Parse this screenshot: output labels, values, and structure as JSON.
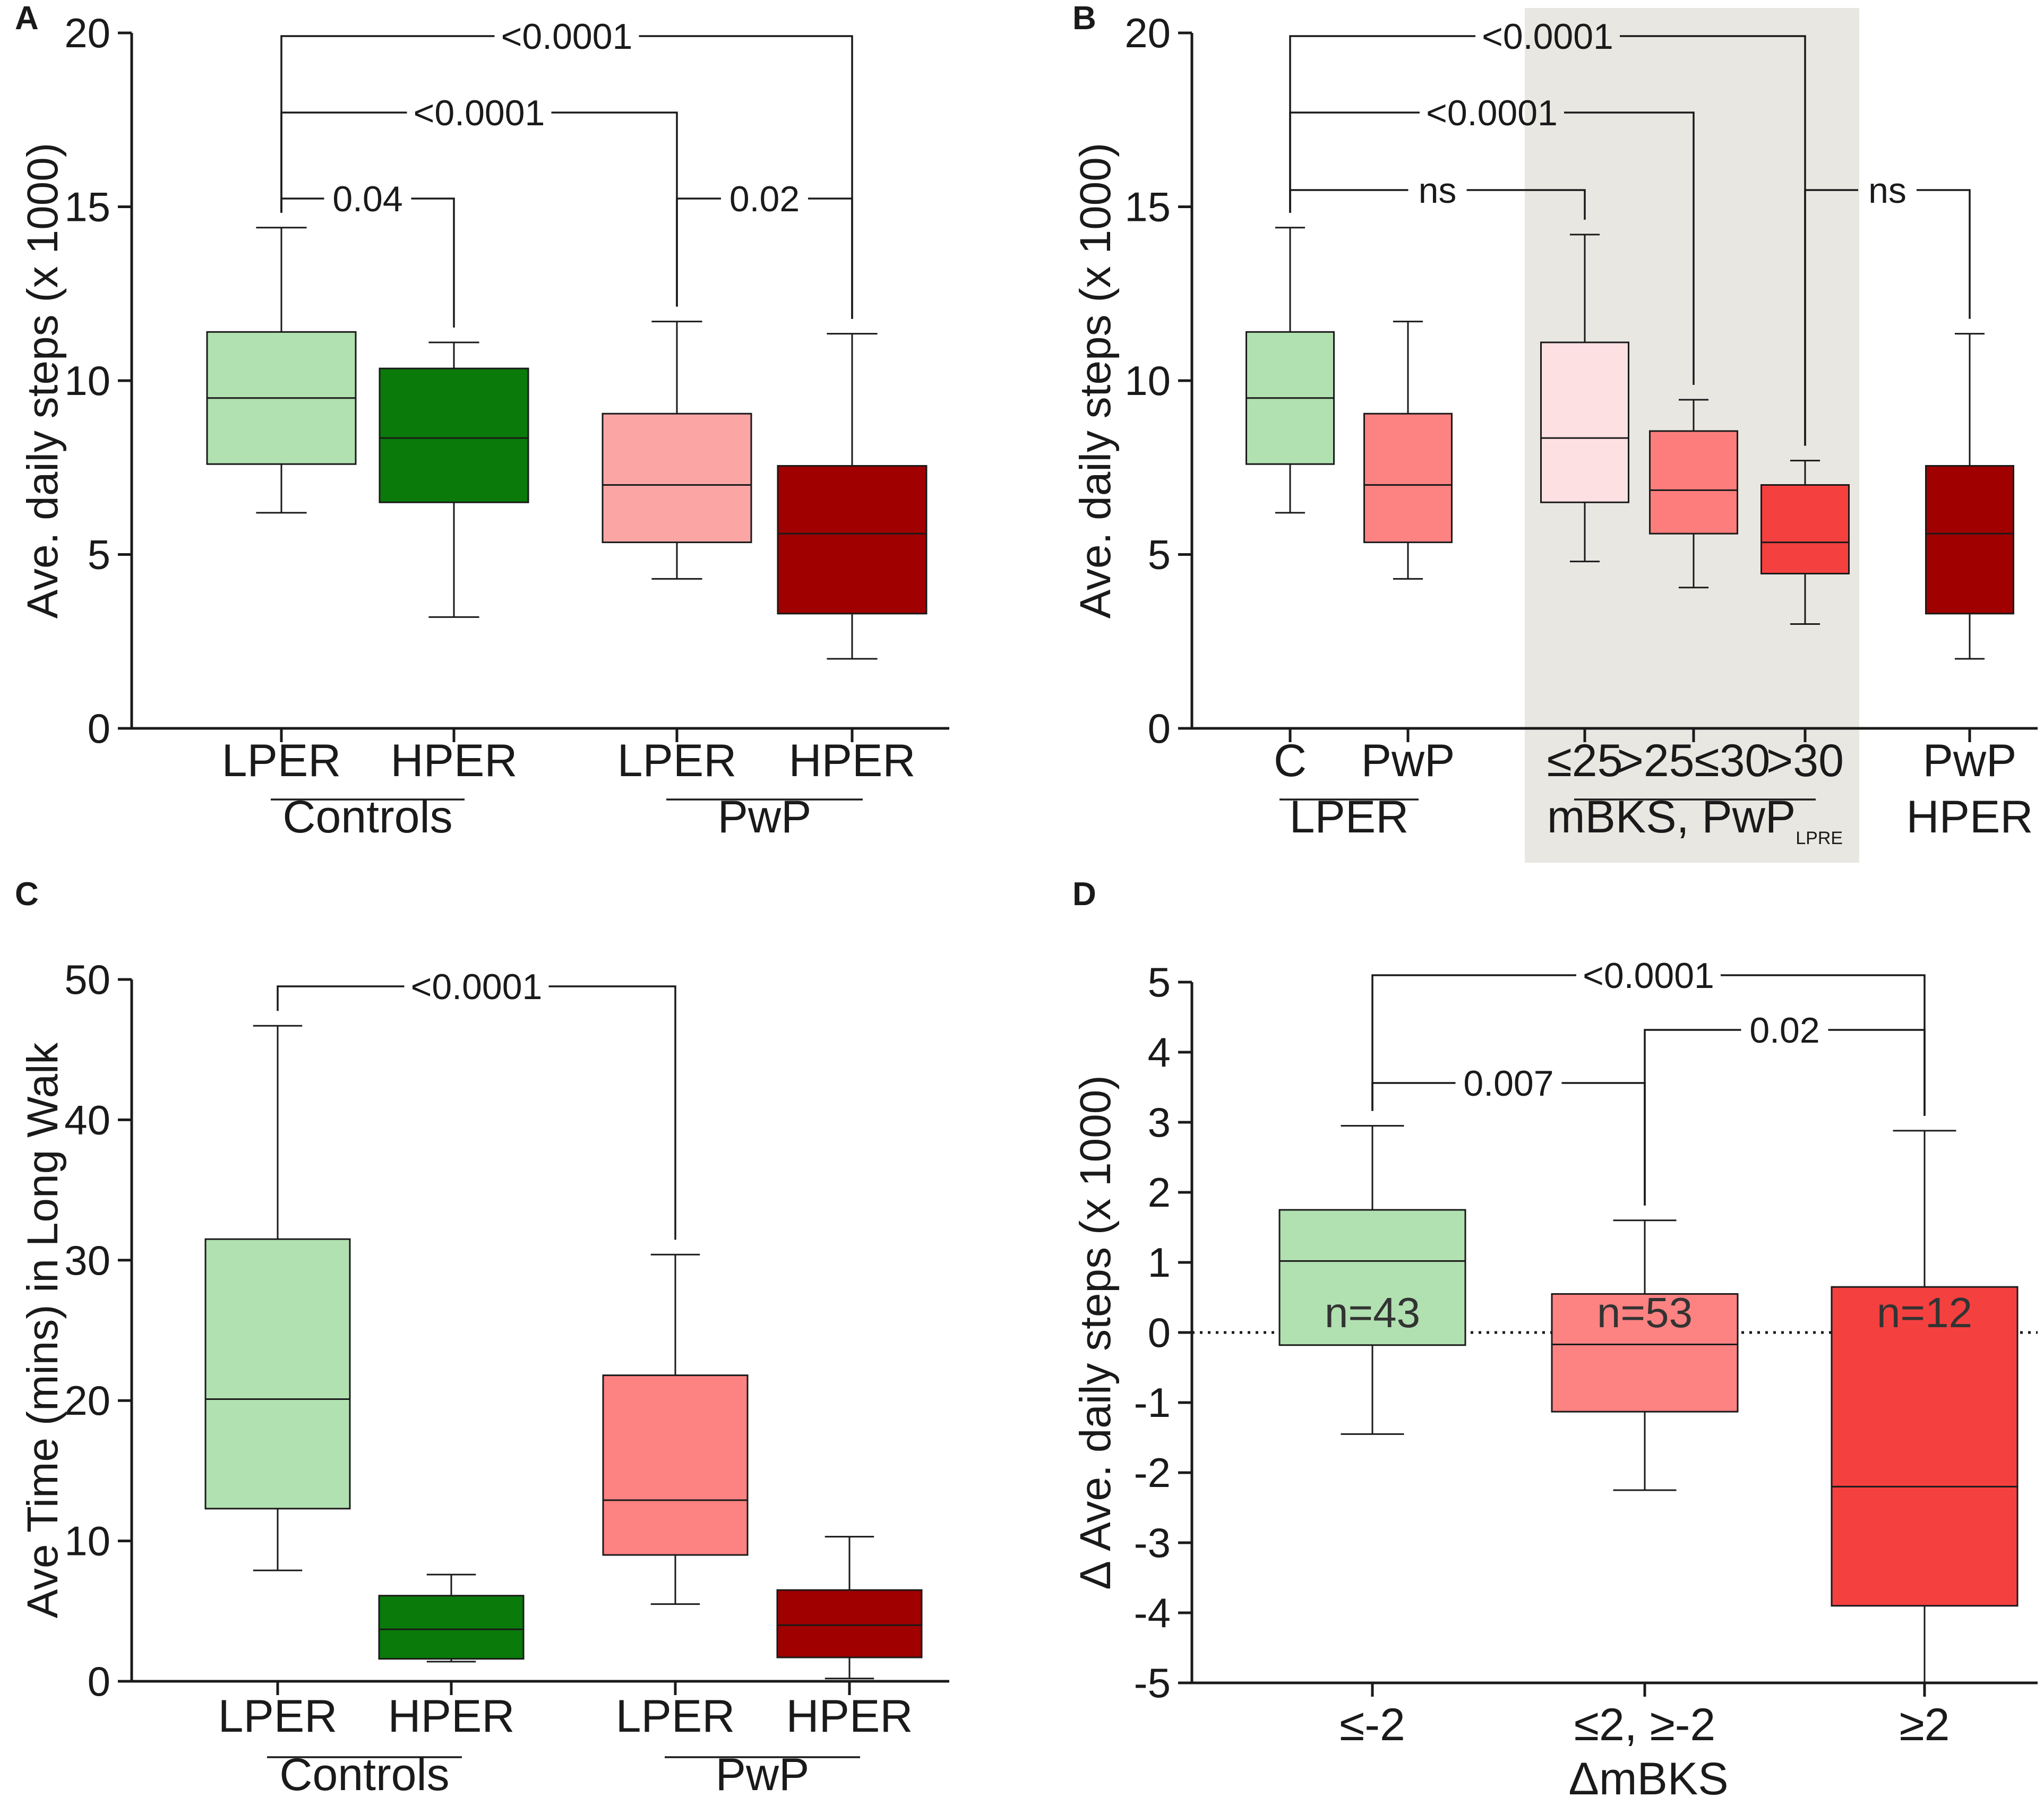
{
  "chart_data": [
    {
      "panel": "A",
      "type": "box",
      "ylabel": "Ave. daily steps (x 1000)",
      "ylim": [
        0,
        20
      ],
      "yticks": [
        0,
        5,
        10,
        15,
        20
      ],
      "boxes": [
        {
          "label": "LPER",
          "min": 6.2,
          "q1": 7.6,
          "median": 9.5,
          "q3": 11.4,
          "max": 14.4,
          "color": "#b1e0b1"
        },
        {
          "label": "HPER",
          "min": 3.2,
          "q1": 6.5,
          "median": 8.35,
          "q3": 10.35,
          "max": 11.1,
          "color": "#0a7a0a"
        },
        {
          "label": "LPER",
          "min": 4.3,
          "q1": 5.35,
          "median": 7.0,
          "q3": 9.05,
          "max": 11.7,
          "color": "#fba5a5"
        },
        {
          "label": "HPER",
          "min": 2.0,
          "q1": 3.3,
          "median": 5.6,
          "q3": 7.55,
          "max": 11.35,
          "color": "#a00000"
        }
      ],
      "group_labels": [
        {
          "text": "Controls",
          "from": 0,
          "to": 1
        },
        {
          "text": "PwP",
          "from": 2,
          "to": 3
        }
      ],
      "comparisons": [
        {
          "a": 0,
          "b": 3,
          "p": "<0.0001"
        },
        {
          "a": 0,
          "b": 2,
          "p": "<0.0001"
        },
        {
          "a": 0,
          "b": 1,
          "p": "0.04"
        },
        {
          "a": 2,
          "b": 3,
          "p": "0.02"
        }
      ]
    },
    {
      "panel": "B",
      "type": "box",
      "ylabel": "Ave. daily steps (x 1000)",
      "ylim": [
        0,
        20
      ],
      "yticks": [
        0,
        5,
        10,
        15,
        20
      ],
      "boxes": [
        {
          "label": "C",
          "min": 6.2,
          "q1": 7.6,
          "median": 9.5,
          "q3": 11.4,
          "max": 14.4,
          "color": "#b1e0b1"
        },
        {
          "label": "PwP",
          "min": 4.3,
          "q1": 5.35,
          "median": 7.0,
          "q3": 9.05,
          "max": 11.7,
          "color": "#fd8282"
        },
        {
          "label": "≤25",
          "min": 4.8,
          "q1": 6.5,
          "median": 8.35,
          "q3": 11.1,
          "max": 14.2,
          "color": "#fde0e2"
        },
        {
          "label": ">25≤30",
          "min": 4.05,
          "q1": 5.6,
          "median": 6.85,
          "q3": 8.55,
          "max": 9.45,
          "color": "#fd7d7d"
        },
        {
          "label": ">30",
          "min": 3.0,
          "q1": 4.45,
          "median": 5.35,
          "q3": 7.0,
          "max": 7.7,
          "color": "#f54040"
        },
        {
          "label": "PwP",
          "min": 2.0,
          "q1": 3.3,
          "median": 5.6,
          "q3": 7.55,
          "max": 11.35,
          "color": "#a00000"
        }
      ],
      "group_labels": [
        {
          "text": "LPER",
          "from": 0,
          "to": 1
        },
        {
          "text": "mBKS, PwP",
          "subscript": "LPRE",
          "from": 2,
          "to": 4
        },
        {
          "text": "HPER",
          "from": 5,
          "to": 5
        }
      ],
      "shaded_group": "mBKS, PwP",
      "comparisons": [
        {
          "a": 0,
          "b": 4,
          "p": "<0.0001"
        },
        {
          "a": 0,
          "b": 3,
          "p": "<0.0001"
        },
        {
          "a": 0,
          "b": 2,
          "p": "ns"
        },
        {
          "a": 4,
          "b": 5,
          "p": "ns"
        }
      ]
    },
    {
      "panel": "C",
      "type": "box",
      "ylabel": "Ave Time (mins) in Long Walk",
      "ylim": [
        0,
        50
      ],
      "yticks": [
        0,
        10,
        20,
        30,
        40,
        50
      ],
      "boxes": [
        {
          "label": "LPER",
          "min": 7.9,
          "q1": 12.3,
          "median": 20.1,
          "q3": 31.5,
          "max": 46.7,
          "color": "#b1e0b1"
        },
        {
          "label": "HPER",
          "min": 1.4,
          "q1": 1.6,
          "median": 3.7,
          "q3": 6.1,
          "max": 7.6,
          "color": "#0a7a0a"
        },
        {
          "label": "LPER",
          "min": 5.5,
          "q1": 9.0,
          "median": 12.9,
          "q3": 21.8,
          "max": 30.4,
          "color": "#fd8282"
        },
        {
          "label": "HPER",
          "min": 0.2,
          "q1": 1.7,
          "median": 4.0,
          "q3": 6.5,
          "max": 10.3,
          "color": "#a00000"
        }
      ],
      "group_labels": [
        {
          "text": "Controls",
          "from": 0,
          "to": 1
        },
        {
          "text": "PwP",
          "from": 2,
          "to": 3
        }
      ],
      "comparisons": [
        {
          "a": 0,
          "b": 2,
          "p": "<0.0001"
        }
      ]
    },
    {
      "panel": "D",
      "type": "box",
      "ylabel": "Δ Ave. daily steps (x 1000)",
      "xlabel": "ΔmBKS",
      "ylim": [
        -5,
        5
      ],
      "yticks": [
        -5,
        -4,
        -3,
        -2,
        -1,
        0,
        1,
        2,
        3,
        4,
        5
      ],
      "reference_line": 0,
      "boxes": [
        {
          "label": "≤-2",
          "n": "n=43",
          "min": -1.45,
          "q1": -0.18,
          "median": 1.02,
          "q3": 1.75,
          "max": 2.95,
          "color": "#b1e0b1"
        },
        {
          "label": "≤2, ≥-2",
          "n": "n=53",
          "min": -2.25,
          "q1": -1.13,
          "median": -0.17,
          "q3": 0.55,
          "max": 1.6,
          "color": "#fd8282"
        },
        {
          "label": "≥2",
          "n": "n=12",
          "min": -5.0,
          "q1": -3.9,
          "median": -2.2,
          "q3": 0.65,
          "max": 2.88,
          "color": "#f54040"
        }
      ],
      "comparisons": [
        {
          "a": 0,
          "b": 2,
          "p": "<0.0001"
        },
        {
          "a": 1,
          "b": 2,
          "p": "0.02"
        },
        {
          "a": 0,
          "b": 1,
          "p": "0.007"
        }
      ]
    }
  ]
}
